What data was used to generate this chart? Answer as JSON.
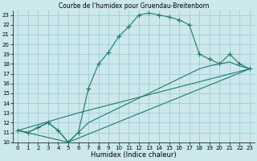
{
  "title": "Courbe de l'humidex pour Gruendau-Breitenborn",
  "xlabel": "Humidex (Indice chaleur)",
  "bg_color": "#cce8ec",
  "grid_color": "#9ecdd4",
  "line_color": "#1e7a6a",
  "xlim": [
    -0.5,
    23.5
  ],
  "ylim": [
    10,
    23.5
  ],
  "xticks": [
    0,
    1,
    2,
    3,
    4,
    5,
    6,
    7,
    8,
    9,
    10,
    11,
    12,
    13,
    14,
    15,
    16,
    17,
    18,
    19,
    20,
    21,
    22,
    23
  ],
  "yticks": [
    10,
    11,
    12,
    13,
    14,
    15,
    16,
    17,
    18,
    19,
    20,
    21,
    22,
    23
  ],
  "line1_x": [
    0,
    1,
    2,
    3,
    4,
    5,
    6,
    7,
    8,
    9,
    10,
    11,
    12,
    13,
    14,
    15,
    16,
    17,
    18,
    19,
    20,
    21,
    22,
    23
  ],
  "line1_y": [
    11.2,
    11.0,
    11.5,
    12.0,
    11.2,
    10.0,
    11.0,
    15.5,
    18.0,
    19.2,
    20.8,
    21.8,
    23.0,
    23.2,
    23.0,
    22.8,
    22.5,
    22.0,
    19.0,
    18.5,
    18.0,
    19.0,
    18.0,
    17.5
  ],
  "line2_x": [
    0,
    1,
    2,
    3,
    4,
    5,
    6,
    7,
    8,
    9,
    10,
    11,
    12,
    13,
    14,
    15,
    16,
    17,
    18,
    19,
    20,
    21,
    22,
    23
  ],
  "line2_y": [
    11.2,
    11.0,
    11.5,
    12.0,
    11.2,
    10.0,
    11.0,
    12.0,
    12.5,
    13.0,
    13.5,
    14.0,
    14.5,
    15.0,
    15.5,
    16.0,
    16.5,
    17.0,
    17.5,
    17.8,
    18.0,
    18.2,
    17.8,
    17.5
  ],
  "line3_x": [
    0,
    5,
    23
  ],
  "line3_y": [
    11.2,
    10.0,
    17.5
  ],
  "line4_x": [
    0,
    6,
    23
  ],
  "line4_y": [
    11.2,
    13.0,
    17.5
  ],
  "marker": "+",
  "markersize": 4,
  "title_fontsize": 5.5,
  "xlabel_fontsize": 6,
  "tick_fontsize": 5
}
